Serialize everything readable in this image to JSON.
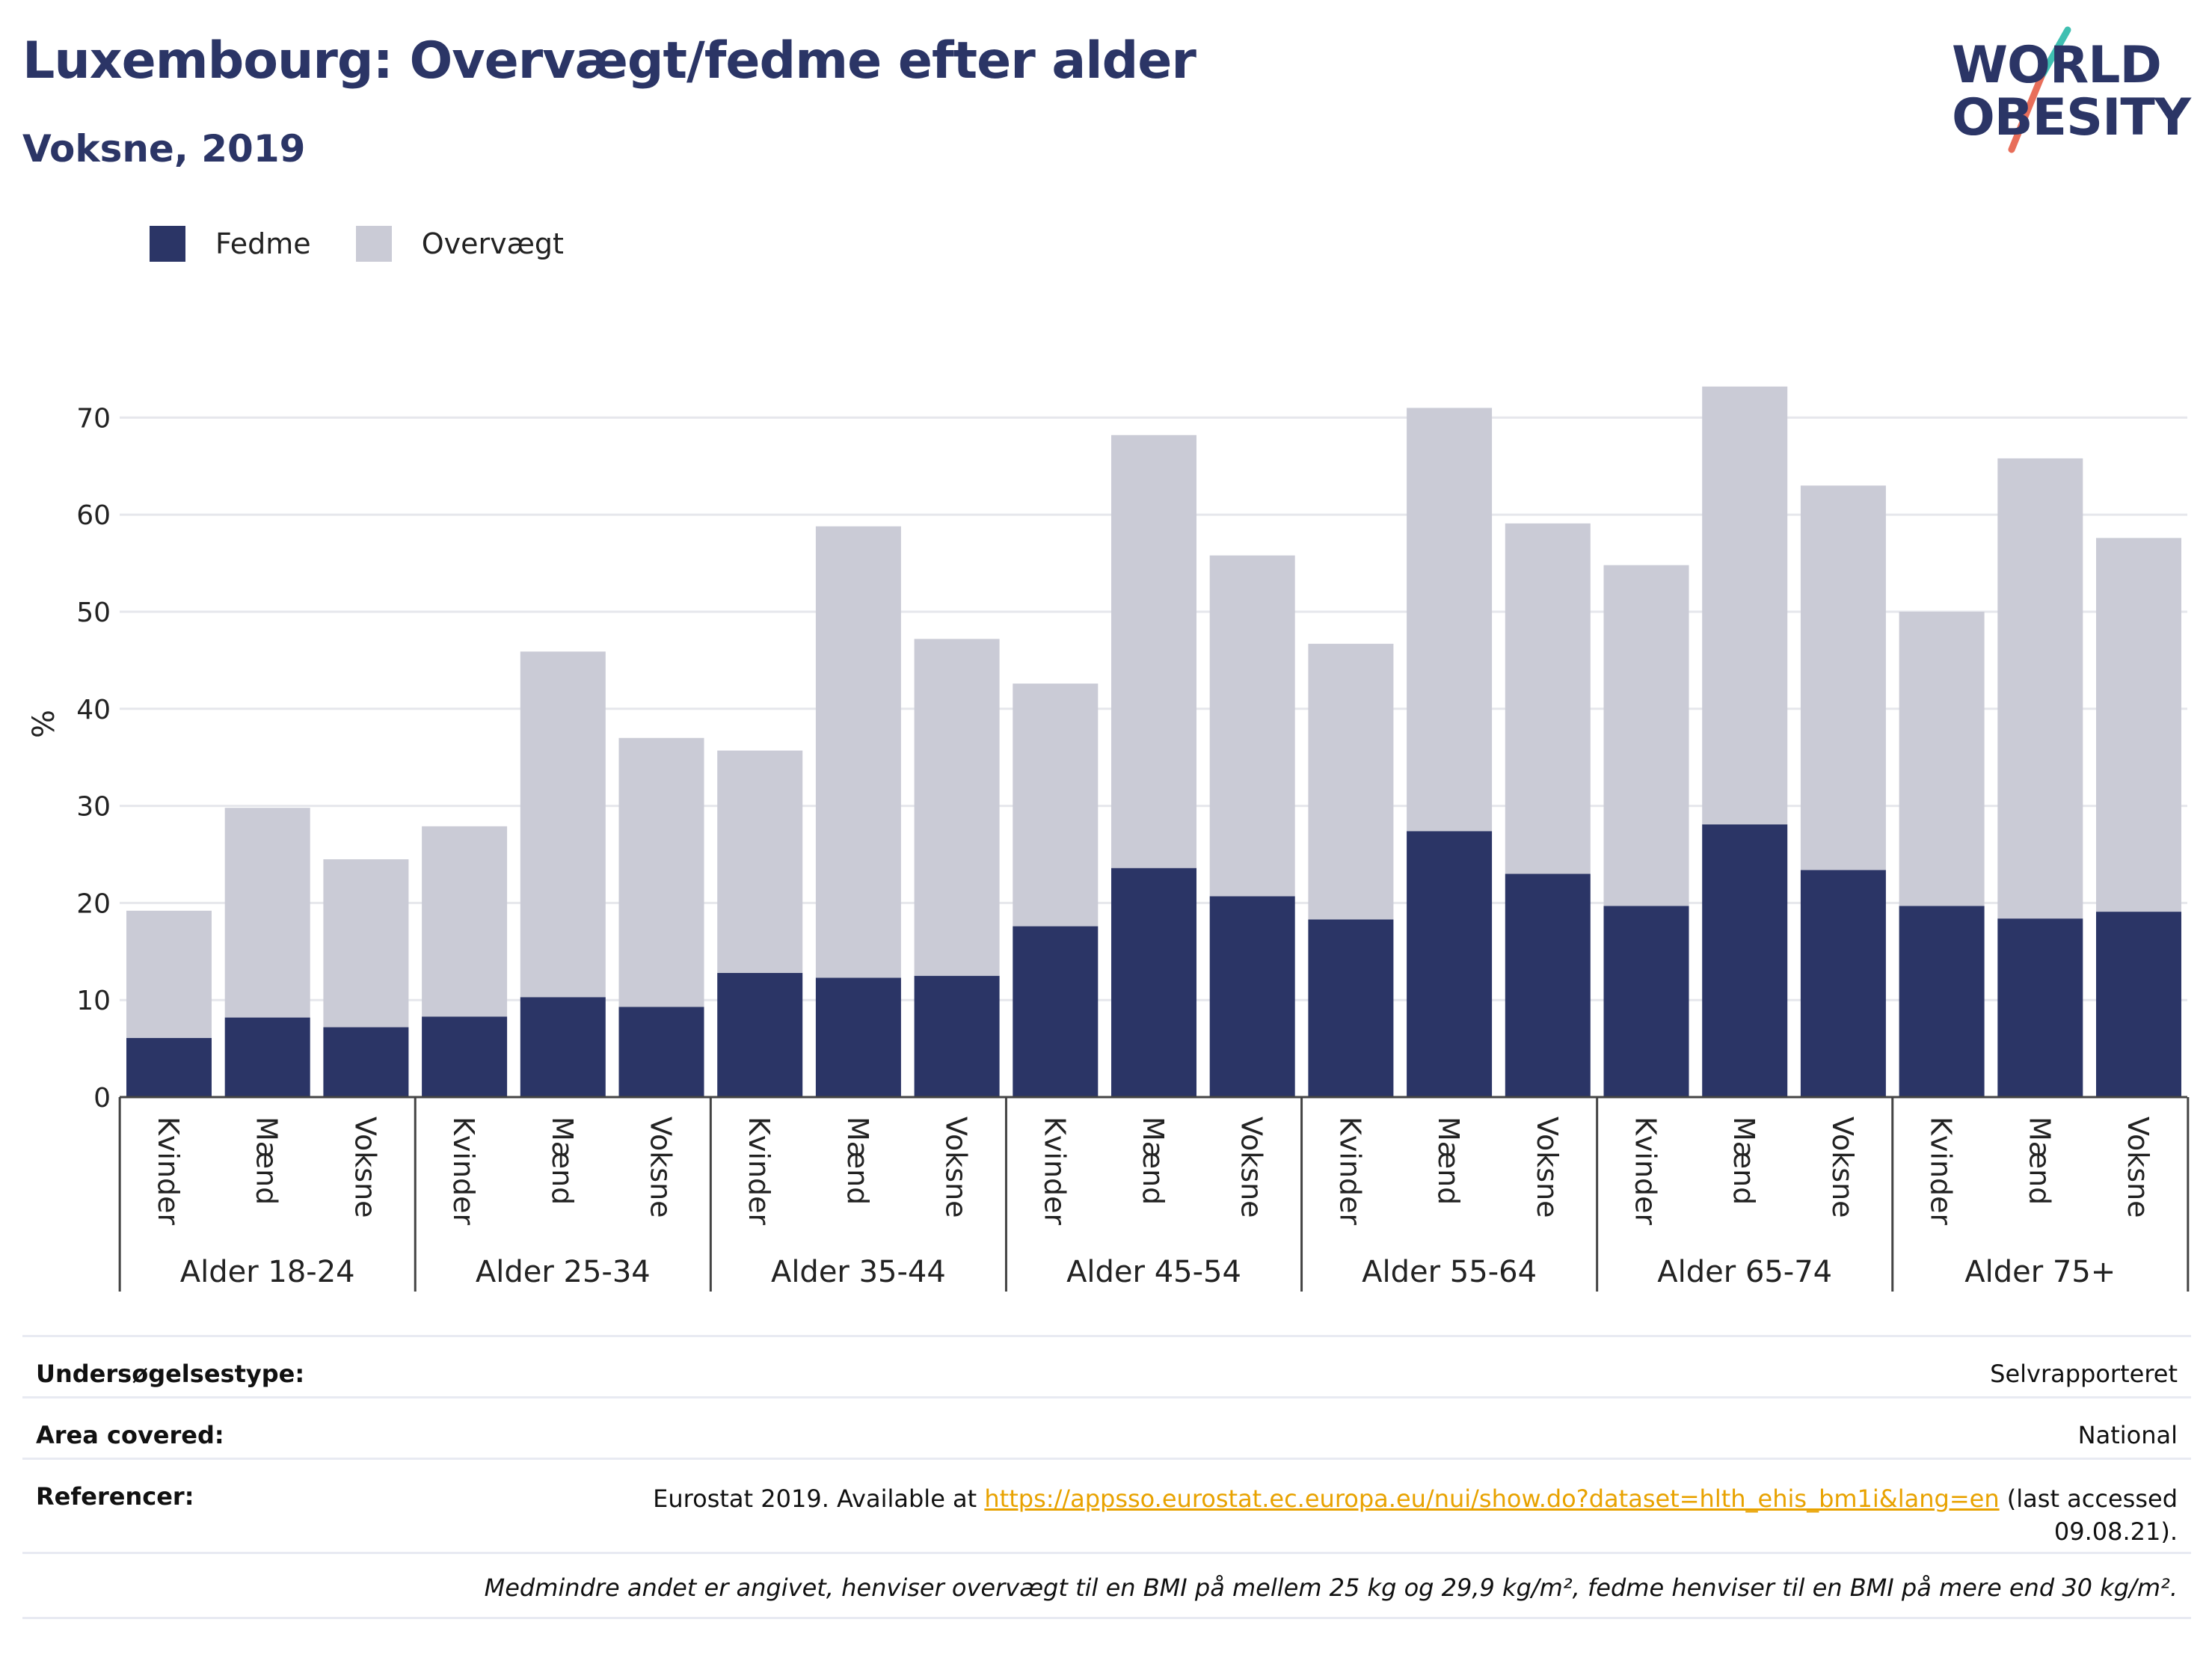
{
  "title": "Luxembourg: Overvægt/fedme efter alder",
  "subtitle": "Voksne, 2019",
  "logo": {
    "line1": "WORLD",
    "line2": "OBESITY"
  },
  "colors": {
    "fedme": "#2b3566",
    "overvaegt": "#cacbd6",
    "title": "#2b3566",
    "link": "#e8a200",
    "logo_teal": "#3fbfb1",
    "logo_coral": "#e86e5a"
  },
  "legend": [
    {
      "label": "Fedme",
      "color": "#2b3566"
    },
    {
      "label": "Overvægt",
      "color": "#cacbd6"
    }
  ],
  "chart_data": {
    "type": "bar",
    "stacked": true,
    "ylabel": "%",
    "ylim": [
      0,
      75
    ],
    "yticks": [
      0,
      10,
      20,
      30,
      40,
      50,
      60,
      70
    ],
    "grid": true,
    "legend_position": "top-left",
    "groups": [
      "Alder 18-24",
      "Alder 25-34",
      "Alder 35-44",
      "Alder 45-54",
      "Alder 55-64",
      "Alder 65-74",
      "Alder 75+"
    ],
    "subcategories": [
      "Kvinder",
      "Mænd",
      "Voksne"
    ],
    "series": [
      {
        "name": "Fedme",
        "values": [
          6.1,
          8.2,
          7.2,
          8.3,
          10.3,
          9.3,
          12.8,
          12.3,
          12.5,
          17.6,
          23.6,
          20.7,
          18.3,
          27.4,
          23.0,
          19.7,
          28.1,
          23.4,
          19.7,
          18.4,
          19.1
        ]
      },
      {
        "name": "Overvægt",
        "values": [
          13.1,
          21.6,
          17.3,
          19.6,
          35.6,
          27.7,
          22.9,
          46.5,
          34.7,
          25.0,
          44.6,
          35.1,
          28.4,
          43.6,
          36.1,
          35.1,
          45.1,
          39.6,
          30.3,
          47.4,
          38.5
        ]
      }
    ],
    "totals": [
      19.2,
      29.8,
      24.5,
      27.9,
      45.9,
      37.0,
      35.7,
      58.8,
      47.2,
      42.6,
      68.2,
      55.8,
      46.7,
      71.0,
      59.1,
      54.8,
      73.2,
      63.0,
      50.0,
      65.8,
      57.6
    ]
  },
  "info": {
    "rows": [
      {
        "key": "Undersøgelsestype:",
        "value": "Selvrapporteret"
      },
      {
        "key": "Area covered:",
        "value": "National"
      }
    ],
    "references_key": "Referencer:",
    "references_pre": "Eurostat 2019. Available at ",
    "references_link": "https://appsso.eurostat.ec.europa.eu/nui/show.do?dataset=hlth_ehis_bm1i&lang=en",
    "references_post": " (last accessed",
    "references_date": "09.08.21).",
    "note": "Medmindre andet er angivet, henviser overvægt til en BMI på mellem 25 kg og 29,9 kg/m², fedme henviser til en BMI på mere end 30 kg/m²."
  }
}
